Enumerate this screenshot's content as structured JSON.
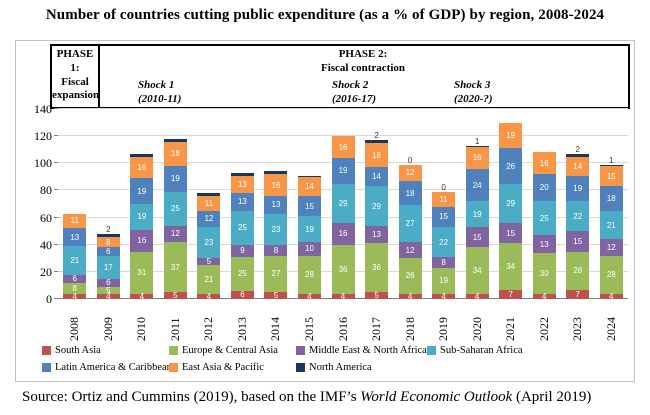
{
  "title": "Number of countries cutting public expenditure (as a % of GDP) by region, 2008-2024",
  "phases": {
    "phase1": {
      "line1": "PHASE 1:",
      "line2": "Fiscal",
      "line3": "expansion"
    },
    "phase2": {
      "line1": "PHASE 2:",
      "line2": "Fiscal contraction"
    },
    "shocks": [
      {
        "name": "Shock 1",
        "period": "(2010-11)"
      },
      {
        "name": "Shock 2",
        "period": "(2016-17)"
      },
      {
        "name": "Shock 3",
        "period": "(2020-?)"
      }
    ]
  },
  "chart_data": {
    "type": "bar",
    "stacked": true,
    "x": [
      "2008",
      "2009",
      "2010",
      "2011",
      "2012",
      "2013",
      "2014",
      "2015",
      "2016",
      "2017",
      "2018",
      "2019",
      "2020",
      "2021",
      "2022",
      "2023",
      "2024"
    ],
    "series": [
      {
        "name": "South Asia",
        "color": "#C0504D",
        "values": [
          4,
          4,
          4,
          5,
          4,
          6,
          5,
          4,
          4,
          5,
          4,
          4,
          4,
          7,
          4,
          7,
          4
        ]
      },
      {
        "name": "Europe & Central Asia",
        "color": "#9BBB59",
        "values": [
          8,
          5,
          31,
          37,
          21,
          25,
          27,
          28,
          36,
          36,
          26,
          19,
          34,
          34,
          30,
          28,
          28
        ]
      },
      {
        "name": "Middle East & North Africa",
        "color": "#8064A2",
        "values": [
          6,
          6,
          16,
          12,
          5,
          9,
          8,
          10,
          16,
          13,
          12,
          8,
          15,
          15,
          13,
          15,
          12
        ]
      },
      {
        "name": "Sub-Saharan Africa",
        "color": "#4BACC6",
        "values": [
          21,
          17,
          19,
          25,
          23,
          25,
          23,
          19,
          29,
          29,
          27,
          22,
          19,
          29,
          25,
          22,
          21
        ]
      },
      {
        "name": "Latin America & Caribbean",
        "color": "#4F81BD",
        "values": [
          13,
          6,
          19,
          19,
          12,
          13,
          13,
          15,
          19,
          14,
          18,
          15,
          24,
          26,
          20,
          19,
          18
        ]
      },
      {
        "name": "East Asia & Pacific",
        "color": "#F79646",
        "values": [
          11,
          8,
          16,
          18,
          11,
          13,
          16,
          14,
          16,
          18,
          12,
          11,
          16,
          19,
          16,
          14,
          15
        ]
      },
      {
        "name": "North America",
        "color": "#17375E",
        "values": [
          0,
          2,
          2,
          2,
          2,
          2,
          2,
          1,
          0,
          2,
          0,
          0,
          1,
          0,
          0,
          2,
          1
        ]
      }
    ],
    "top_labels": {
      "2009": "2",
      "2017": "2",
      "2018": "0",
      "2019": "0",
      "2020": "1",
      "2023": "2",
      "2024": "1"
    },
    "ylim": [
      0,
      140
    ],
    "yticks": [
      0,
      20,
      40,
      60,
      80,
      100,
      120,
      140
    ],
    "grid": true,
    "legend_position": "bottom",
    "min_value_for_segment_label": 4
  },
  "source": {
    "prefix": "Source: Ortiz and Cummins (2019), based on the IMF’s ",
    "italic": "World Economic Outlook",
    "suffix": " (April 2019)"
  }
}
